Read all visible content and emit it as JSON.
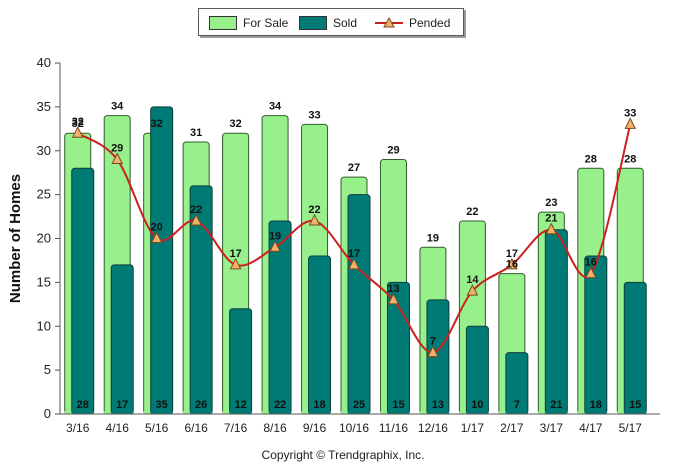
{
  "chart_data": {
    "type": "bar",
    "ylabel": "Number of Homes",
    "ylim": [
      0,
      40
    ],
    "yticks": [
      0,
      5,
      10,
      15,
      20,
      25,
      30,
      35,
      40
    ],
    "grid": false,
    "legend_position": "top-center",
    "categories": [
      "3/16",
      "4/16",
      "5/16",
      "6/16",
      "7/16",
      "8/16",
      "9/16",
      "10/16",
      "11/16",
      "12/16",
      "1/17",
      "2/17",
      "3/17",
      "4/17",
      "5/17"
    ],
    "series": [
      {
        "name": "For Sale",
        "type": "bar",
        "color": "#98f08c",
        "values": [
          32,
          34,
          32,
          31,
          32,
          34,
          33,
          27,
          29,
          19,
          22,
          16,
          23,
          28,
          28
        ]
      },
      {
        "name": "Sold",
        "type": "bar",
        "color": "#007a74",
        "values": [
          28,
          17,
          35,
          26,
          12,
          22,
          18,
          25,
          15,
          13,
          10,
          7,
          21,
          18,
          15
        ]
      },
      {
        "name": "Pended",
        "type": "line",
        "color": "#cc1f1f",
        "marker_color": "#f3b26a",
        "values": [
          32,
          29,
          20,
          22,
          17,
          19,
          22,
          17,
          13,
          7,
          14,
          17,
          21,
          16,
          33
        ]
      }
    ]
  },
  "legend": {
    "items": [
      {
        "label": "For Sale"
      },
      {
        "label": "Sold"
      },
      {
        "label": "Pended"
      }
    ]
  },
  "footer": {
    "symbol": "©",
    "text": "Copyright Trendgraphix, Inc."
  }
}
